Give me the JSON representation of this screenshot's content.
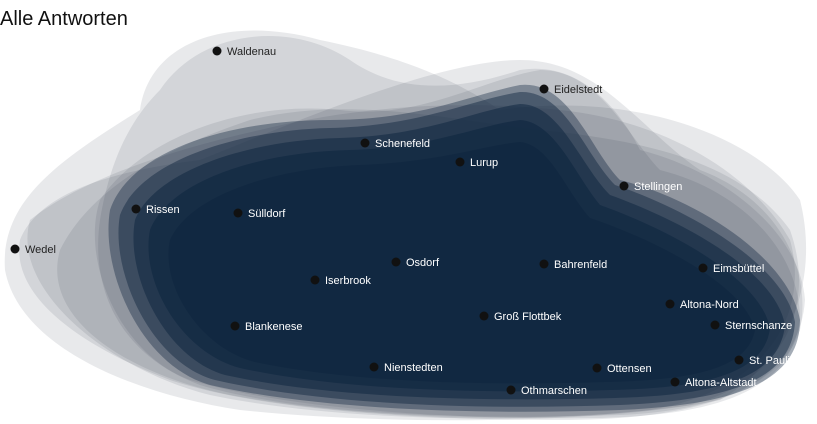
{
  "title": "Alle Antworten",
  "colors": {
    "core": "#0f2640",
    "outer_layer": "#1e2a3a",
    "dot": "#111111",
    "label_on_dark": "#ffffff",
    "label_on_light": "#222222"
  },
  "places": [
    {
      "name": "Waldenau",
      "on_dark": false
    },
    {
      "name": "Eidelstedt",
      "on_dark": false
    },
    {
      "name": "Schenefeld",
      "on_dark": true
    },
    {
      "name": "Lurup",
      "on_dark": true
    },
    {
      "name": "Stellingen",
      "on_dark": true
    },
    {
      "name": "Rissen",
      "on_dark": true
    },
    {
      "name": "Sülldorf",
      "on_dark": true
    },
    {
      "name": "Wedel",
      "on_dark": false
    },
    {
      "name": "Osdorf",
      "on_dark": true
    },
    {
      "name": "Bahrenfeld",
      "on_dark": true
    },
    {
      "name": "Eimsbüttel",
      "on_dark": true
    },
    {
      "name": "Iserbrook",
      "on_dark": true
    },
    {
      "name": "Altona-Nord",
      "on_dark": true
    },
    {
      "name": "Groß Flottbek",
      "on_dark": true
    },
    {
      "name": "Sternschanze",
      "on_dark": true
    },
    {
      "name": "Blankenese",
      "on_dark": true
    },
    {
      "name": "St. Pauli",
      "on_dark": true
    },
    {
      "name": "Nienstedten",
      "on_dark": true
    },
    {
      "name": "Ottensen",
      "on_dark": true
    },
    {
      "name": "Altona-Altstadt",
      "on_dark": true
    },
    {
      "name": "Othmarschen",
      "on_dark": true
    }
  ]
}
